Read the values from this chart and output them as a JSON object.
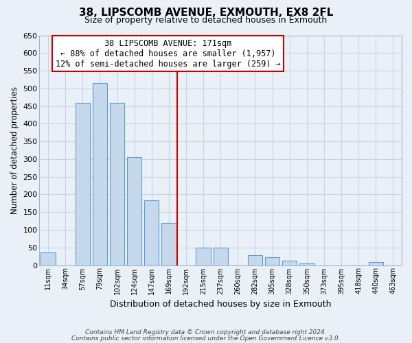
{
  "title": "38, LIPSCOMB AVENUE, EXMOUTH, EX8 2FL",
  "subtitle": "Size of property relative to detached houses in Exmouth",
  "xlabel": "Distribution of detached houses by size in Exmouth",
  "ylabel": "Number of detached properties",
  "bin_labels": [
    "11sqm",
    "34sqm",
    "57sqm",
    "79sqm",
    "102sqm",
    "124sqm",
    "147sqm",
    "169sqm",
    "192sqm",
    "215sqm",
    "237sqm",
    "260sqm",
    "282sqm",
    "305sqm",
    "328sqm",
    "350sqm",
    "373sqm",
    "395sqm",
    "418sqm",
    "440sqm",
    "463sqm"
  ],
  "bar_heights": [
    35,
    0,
    458,
    515,
    458,
    305,
    183,
    120,
    0,
    50,
    50,
    0,
    28,
    22,
    12,
    5,
    0,
    0,
    0,
    8,
    0
  ],
  "bar_color": "#c6d9ec",
  "bar_edge_color": "#5b9bd5",
  "vline_x_index": 7.5,
  "vline_color": "#cc0000",
  "annotation_text": "38 LIPSCOMB AVENUE: 171sqm\n← 88% of detached houses are smaller (1,957)\n12% of semi-detached houses are larger (259) →",
  "annotation_box_color": "#ffffff",
  "annotation_box_edge_color": "#cc0000",
  "ylim": [
    0,
    650
  ],
  "yticks": [
    0,
    50,
    100,
    150,
    200,
    250,
    300,
    350,
    400,
    450,
    500,
    550,
    600,
    650
  ],
  "footer_line1": "Contains HM Land Registry data © Crown copyright and database right 2024.",
  "footer_line2": "Contains public sector information licensed under the Open Government Licence v3.0.",
  "bg_color": "#eaf0f8",
  "plot_bg_color": "#eaf0f8",
  "grid_color": "#c8d4e3"
}
